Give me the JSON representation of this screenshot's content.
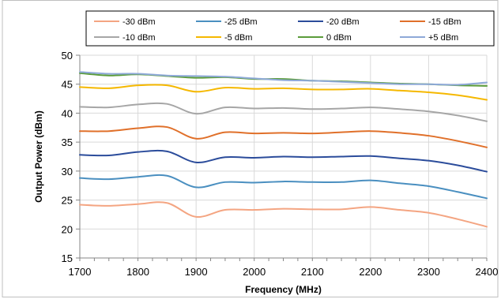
{
  "chart_data": {
    "type": "line",
    "title": "",
    "xlabel": "Frequency (MHz)",
    "ylabel": "Output Power (dBm)",
    "xlim": [
      1700,
      2400
    ],
    "ylim": [
      15,
      50
    ],
    "xticks": [
      1700,
      1800,
      1900,
      2000,
      2100,
      2200,
      2300,
      2400
    ],
    "yticks": [
      15,
      20,
      25,
      30,
      35,
      40,
      45,
      50
    ],
    "x_minor_step": 25,
    "grid": {
      "x": true,
      "y": true
    },
    "legend_position": "top",
    "x": [
      1700,
      1750,
      1800,
      1850,
      1900,
      1950,
      2000,
      2050,
      2100,
      2150,
      2200,
      2250,
      2300,
      2350,
      2400
    ],
    "series": [
      {
        "name": "-30 dBm",
        "color": "#f4a582",
        "values": [
          24.2,
          24.0,
          24.3,
          24.5,
          22.1,
          23.3,
          23.3,
          23.5,
          23.4,
          23.4,
          23.8,
          23.3,
          22.8,
          21.7,
          20.4
        ]
      },
      {
        "name": "-25 dBm",
        "color": "#4a8fc0",
        "values": [
          28.8,
          28.6,
          29.0,
          29.2,
          27.2,
          28.1,
          28.0,
          28.2,
          28.1,
          28.1,
          28.4,
          27.9,
          27.4,
          26.4,
          25.3
        ]
      },
      {
        "name": "-20 dBm",
        "color": "#2b4c9b",
        "values": [
          32.8,
          32.7,
          33.3,
          33.4,
          31.5,
          32.4,
          32.3,
          32.5,
          32.4,
          32.5,
          32.6,
          32.2,
          31.8,
          31.0,
          29.9
        ]
      },
      {
        "name": "-15 dBm",
        "color": "#e0702a",
        "values": [
          36.9,
          36.9,
          37.4,
          37.6,
          35.6,
          36.7,
          36.5,
          36.6,
          36.5,
          36.7,
          36.9,
          36.6,
          36.1,
          35.2,
          34.1
        ]
      },
      {
        "name": "-10 dBm",
        "color": "#a6a6a6",
        "values": [
          41.1,
          41.0,
          41.5,
          41.6,
          39.9,
          41.0,
          40.8,
          40.9,
          40.7,
          40.8,
          41.0,
          40.7,
          40.3,
          39.6,
          38.6
        ]
      },
      {
        "name": "-5 dBm",
        "color": "#f5b800",
        "values": [
          44.5,
          44.3,
          44.8,
          44.8,
          43.7,
          44.4,
          44.2,
          44.3,
          44.1,
          44.1,
          44.2,
          43.9,
          43.6,
          43.1,
          42.3
        ]
      },
      {
        "name": "0 dBm",
        "color": "#5b9c3a",
        "values": [
          46.9,
          46.5,
          46.7,
          46.4,
          46.1,
          46.2,
          45.9,
          45.9,
          45.6,
          45.5,
          45.3,
          45.1,
          45.0,
          44.8,
          44.7
        ]
      },
      {
        "name": "+5 dBm",
        "color": "#8ea9d8",
        "values": [
          47.1,
          46.8,
          46.8,
          46.5,
          46.4,
          46.3,
          46.0,
          45.7,
          45.6,
          45.4,
          45.2,
          45.0,
          45.0,
          44.9,
          45.3
        ]
      }
    ]
  }
}
